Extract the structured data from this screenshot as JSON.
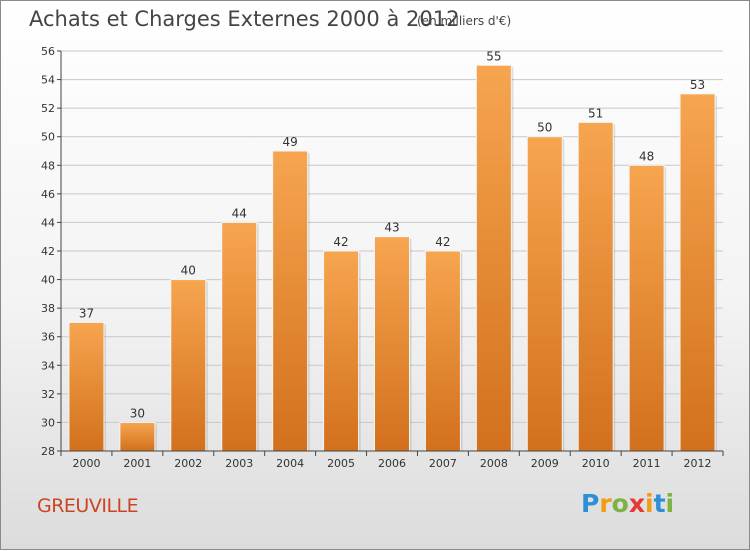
{
  "header": {
    "title": "Achats et Charges Externes 2000 à 2012",
    "unit": "(en milliers d'€)"
  },
  "commune": "GREUVILLE",
  "logo": {
    "letters": [
      "P",
      "r",
      "o",
      "x",
      "i",
      "t",
      "i"
    ],
    "colors": [
      "#2d8fd5",
      "#f39c12",
      "#7cb342",
      "#e53935",
      "#f39c12",
      "#2d8fd5",
      "#7cb342"
    ]
  },
  "colors": {
    "bar_top": "#f7a54f",
    "bar_bottom": "#d2701d",
    "grid": "#c8c8c8",
    "axis": "#444444"
  },
  "chart_data": {
    "type": "bar",
    "categories": [
      "2000",
      "2001",
      "2002",
      "2003",
      "2004",
      "2005",
      "2006",
      "2007",
      "2008",
      "2009",
      "2010",
      "2011",
      "2012"
    ],
    "values": [
      37,
      30,
      40,
      44,
      49,
      42,
      43,
      42,
      55,
      50,
      51,
      48,
      53
    ],
    "ylim": [
      28,
      56
    ],
    "yticks": [
      28,
      30,
      32,
      34,
      36,
      38,
      40,
      42,
      44,
      46,
      48,
      50,
      52,
      54,
      56
    ],
    "grid": true,
    "data_labels": true
  }
}
